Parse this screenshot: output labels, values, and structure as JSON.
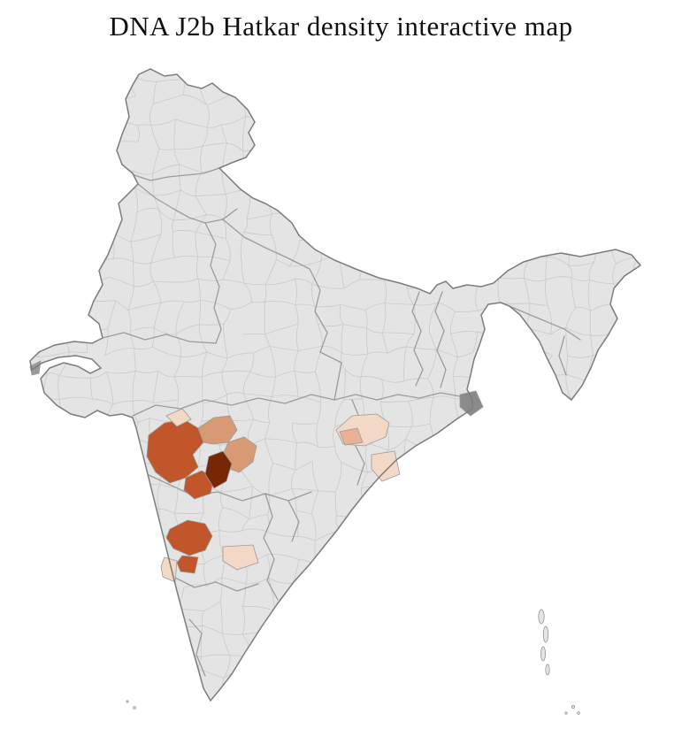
{
  "title": "DNA J2b Hatkar density interactive map",
  "map": {
    "name": "india-district-choropleth",
    "background": "#ffffff",
    "colors": {
      "base": "#e4e4e4",
      "district_line": "#c7c7c7",
      "state_line": "#8f8f8f",
      "outline": "#7c7c7c",
      "gray_dark": "#8b8b8b",
      "gray_small": "#9a9a9a"
    },
    "density_scale": {
      "highest": "#772704",
      "high": "#c1562a",
      "medium": "#d89a74",
      "medium_light": "#e8b193",
      "light": "#f4d8c6"
    },
    "highlights": [
      {
        "id": "h1",
        "level": "high",
        "color": "#c1562a"
      },
      {
        "id": "h2",
        "level": "high",
        "color": "#c1562a"
      },
      {
        "id": "h3",
        "level": "medium",
        "color": "#d89a74"
      },
      {
        "id": "h4",
        "level": "medium",
        "color": "#d89a74"
      },
      {
        "id": "h5",
        "level": "light",
        "color": "#f4d8c6"
      },
      {
        "id": "h6",
        "level": "highest",
        "color": "#772704"
      },
      {
        "id": "h7",
        "level": "high",
        "color": "#c1562a"
      },
      {
        "id": "h8",
        "level": "high",
        "color": "#c1562a"
      },
      {
        "id": "h9",
        "level": "light",
        "color": "#f4d8c6"
      },
      {
        "id": "h10",
        "level": "light",
        "color": "#f4d8c6"
      },
      {
        "id": "h11",
        "level": "light",
        "color": "#f4d8c6"
      },
      {
        "id": "h12",
        "level": "medium_light",
        "color": "#e8b193"
      },
      {
        "id": "h13",
        "level": "light",
        "color": "#f4d8c6"
      }
    ],
    "gray_patches": [
      {
        "id": "g1",
        "color": "#8b8b8b"
      },
      {
        "id": "g2",
        "color": "#9a9a9a"
      }
    ]
  }
}
